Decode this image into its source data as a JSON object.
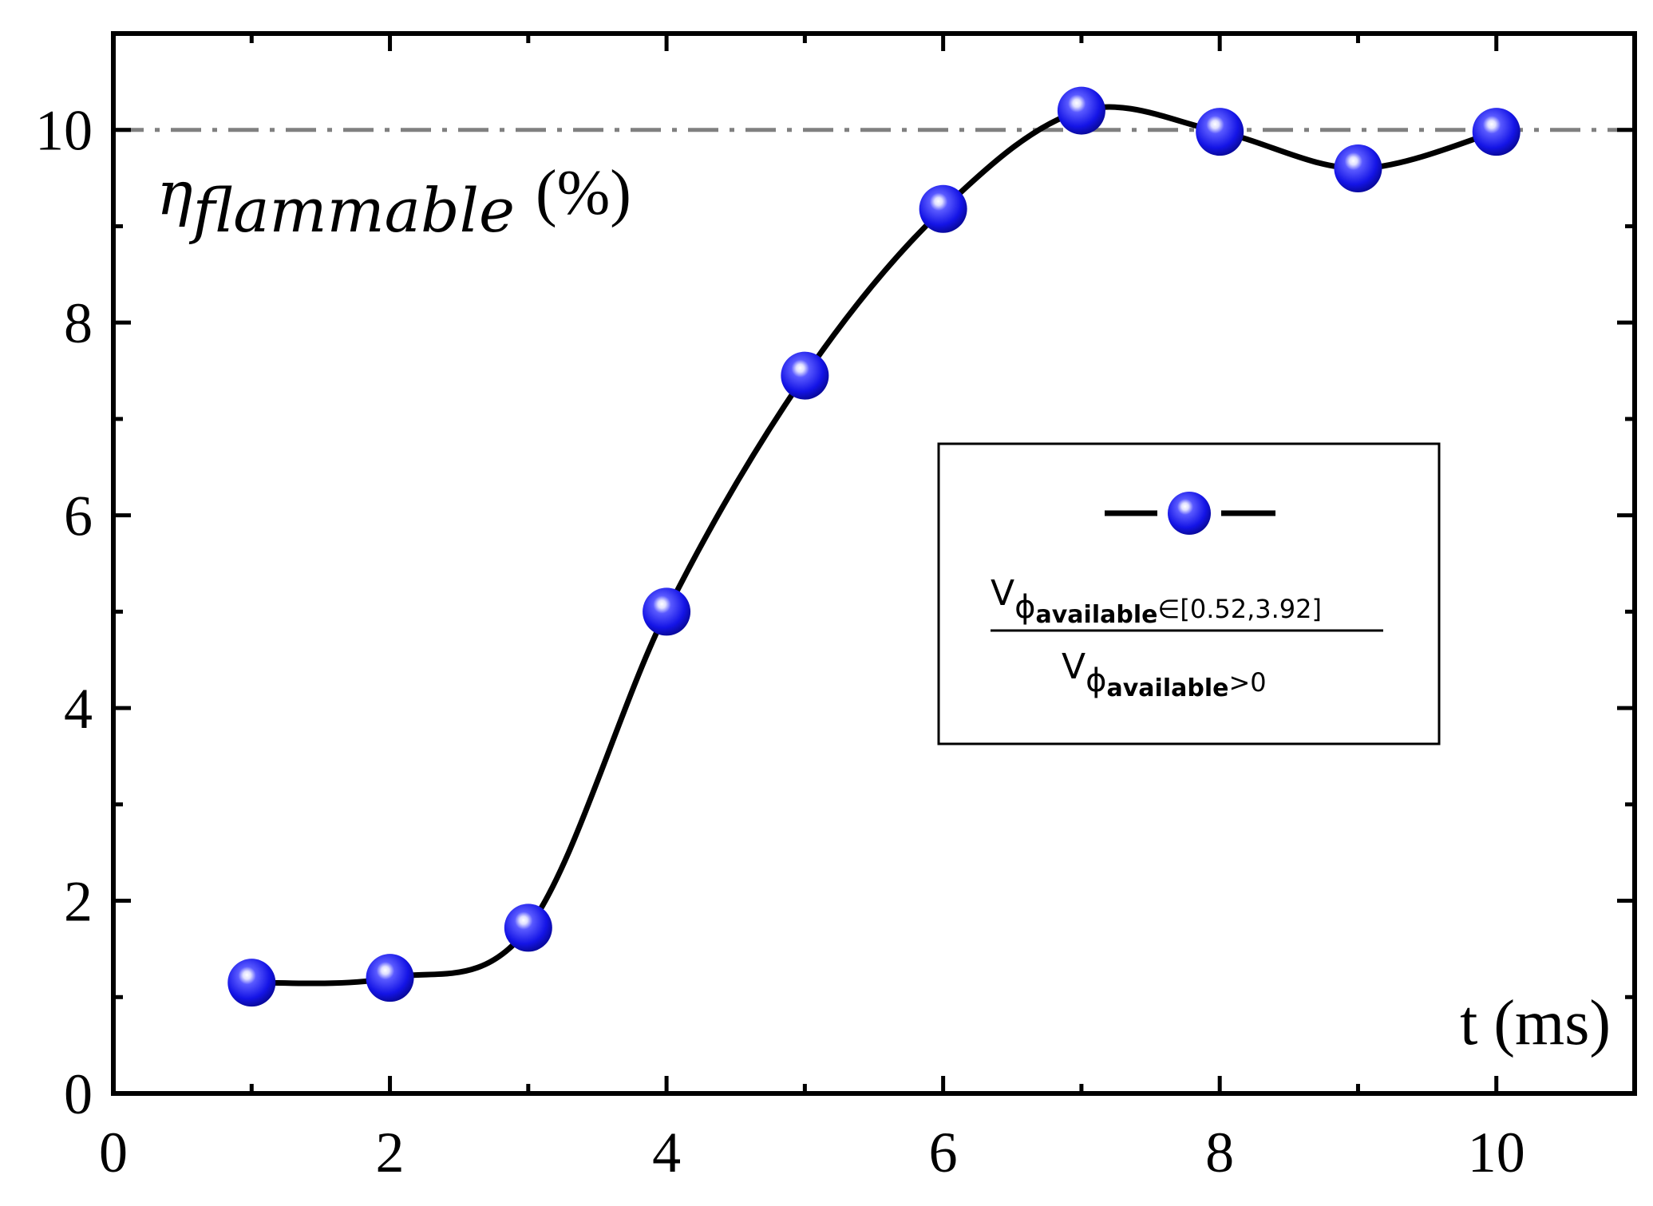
{
  "chart_data": {
    "type": "line",
    "xlim": [
      0,
      11
    ],
    "ylim": [
      0,
      11
    ],
    "x_ticks": [
      "0",
      "2",
      "4",
      "6",
      "8",
      "10"
    ],
    "y_ticks": [
      "0",
      "2",
      "4",
      "6",
      "8",
      "10"
    ],
    "xlabel": "t (ms)",
    "ylabel_symbol": "η",
    "ylabel_subscript": "flammable",
    "ylabel_unit": "(%)",
    "reference_line": {
      "y": 10,
      "style": "dash-dot",
      "color": "#808080"
    },
    "grid": false,
    "series": [
      {
        "x": [
          1,
          2,
          3,
          4,
          5,
          6,
          7,
          8,
          9,
          10
        ],
        "values": [
          1.15,
          1.2,
          1.72,
          5.0,
          7.45,
          9.18,
          10.2,
          9.98,
          9.6,
          9.98
        ],
        "line_color": "#000000",
        "marker_color": "#1010e0",
        "marker": "sphere",
        "smooth": true
      }
    ],
    "legend": {
      "placement": "center-right",
      "numerator_base": "V",
      "numerator_sub1": "ϕ",
      "numerator_sub2": "available",
      "numerator_cond": "∈[0.52,3.92]",
      "denominator_base": "V",
      "denominator_sub1": "ϕ",
      "denominator_sub2": "available",
      "denominator_cond": ">0"
    }
  }
}
